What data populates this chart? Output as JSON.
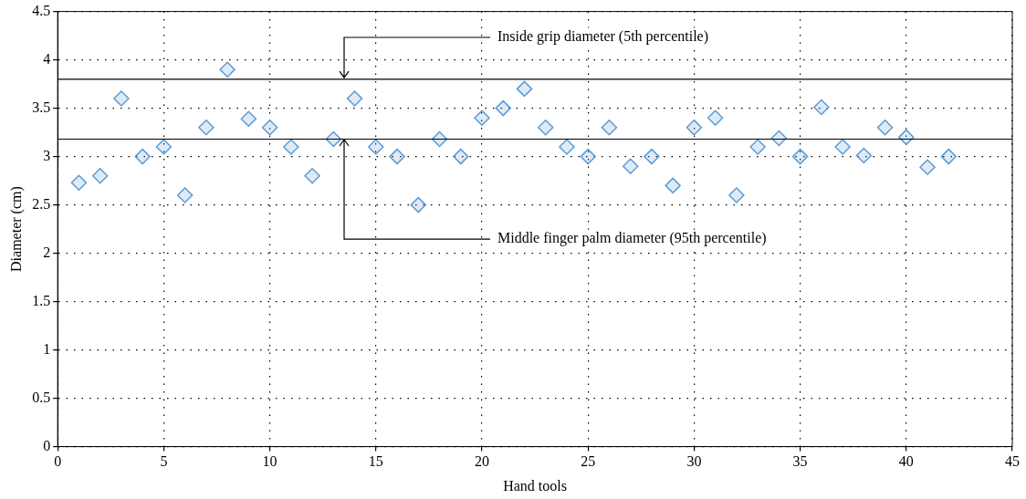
{
  "chart_data": {
    "type": "scatter",
    "xlabel": "Hand tools",
    "ylabel": "Diameter (cm)",
    "x": [
      1,
      2,
      3,
      4,
      5,
      6,
      7,
      8,
      9,
      10,
      11,
      12,
      13,
      14,
      15,
      16,
      17,
      18,
      19,
      20,
      21,
      22,
      23,
      24,
      25,
      26,
      27,
      28,
      29,
      30,
      31,
      32,
      33,
      34,
      35,
      36,
      37,
      38,
      39,
      40,
      41,
      42
    ],
    "series": [
      {
        "color": "#5b9bd5",
        "values": [
          2.73,
          2.8,
          3.6,
          3.0,
          3.1,
          2.6,
          3.3,
          3.9,
          3.39,
          3.3,
          3.1,
          2.8,
          3.18,
          3.6,
          3.1,
          3.0,
          2.5,
          3.18,
          3.0,
          3.4,
          3.5,
          3.7,
          3.3,
          3.1,
          3.0,
          3.3,
          2.9,
          3.0,
          2.7,
          3.3,
          3.4,
          2.6,
          3.1,
          3.19,
          3.0,
          3.51,
          3.1,
          3.01,
          3.3,
          3.2,
          2.89,
          3.0
        ]
      }
    ],
    "marker": "diamond",
    "grid": true,
    "legend": false,
    "xlim": [
      0,
      45
    ],
    "xticks": [
      0,
      5,
      10,
      15,
      20,
      25,
      30,
      35,
      40,
      45
    ],
    "ylim": [
      0,
      4.5
    ],
    "yticks": [
      0,
      0.5,
      1,
      1.5,
      2,
      2.5,
      3,
      3.5,
      4,
      4.5
    ],
    "ref_lines": [
      {
        "axis": "y",
        "value": 3.8,
        "color": "#000000"
      },
      {
        "axis": "y",
        "value": 3.18,
        "color": "#000000"
      }
    ],
    "annotations": [
      {
        "text": "Inside grip diameter (5th percentile)",
        "x": 13.5,
        "y": 3.8
      },
      {
        "text": "Middle finger palm diameter (95th percentile)",
        "x": 13.5,
        "y": 3.18
      }
    ]
  }
}
